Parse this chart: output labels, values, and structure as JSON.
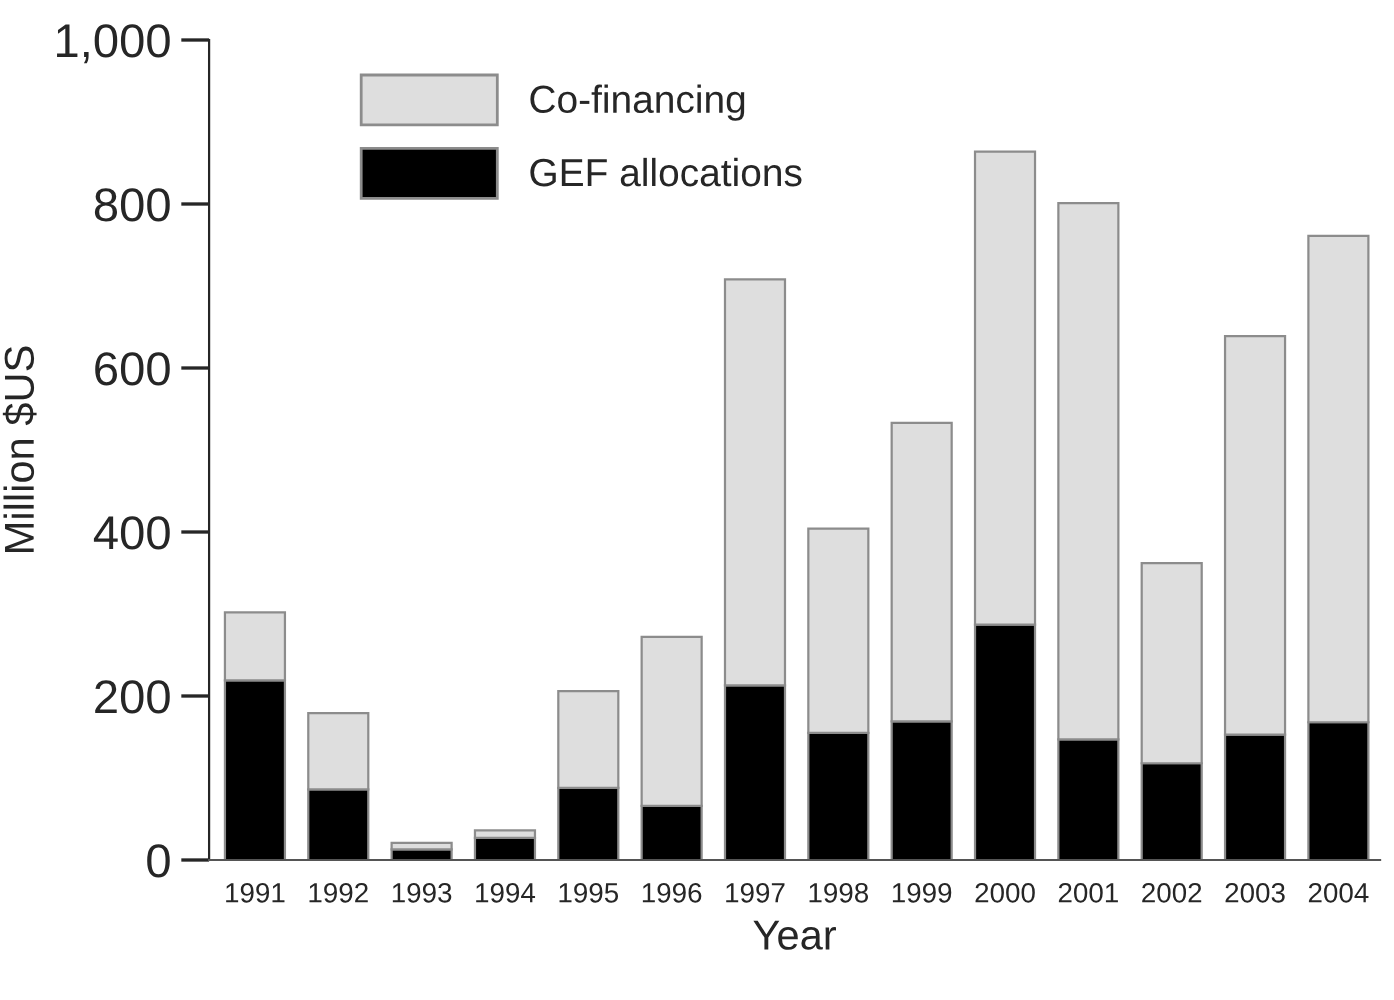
{
  "chart_data": {
    "type": "bar",
    "stacked": true,
    "xlabel": "Year",
    "ylabel": "Million $US",
    "categories": [
      "1991",
      "1992",
      "1993",
      "1994",
      "1995",
      "1996",
      "1997",
      "1998",
      "1999",
      "2000",
      "2001",
      "2002",
      "2003",
      "2004"
    ],
    "series": [
      {
        "name": "GEF allocations",
        "color": "#000000",
        "values": [
          219,
          86,
          13,
          27,
          88,
          66,
          213,
          155,
          169,
          287,
          147,
          118,
          153,
          168
        ]
      },
      {
        "name": "Co-financing",
        "color": "#dedede",
        "values": [
          83,
          93,
          8,
          9,
          118,
          206,
          495,
          249,
          364,
          577,
          654,
          244,
          486,
          593
        ]
      }
    ],
    "ylim": [
      0,
      1000
    ],
    "yticks": [
      0,
      200,
      400,
      600,
      800,
      {
        "value": 1000,
        "label": "1,000"
      }
    ],
    "grid": false,
    "legend": "top left"
  }
}
